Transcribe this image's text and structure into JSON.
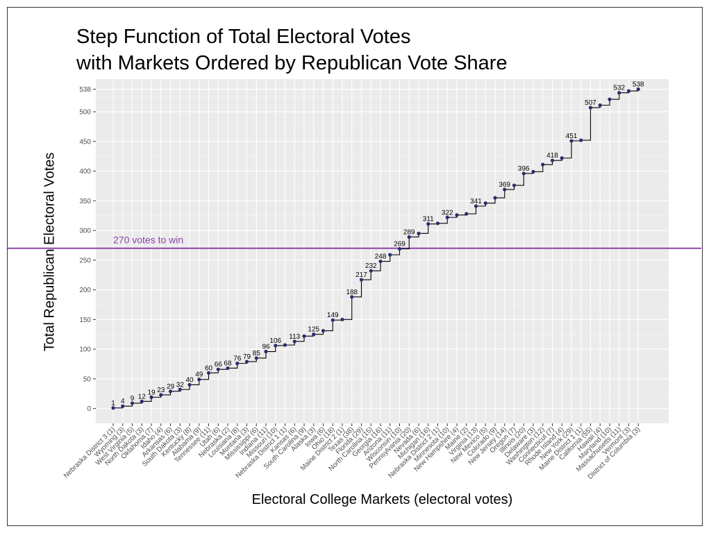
{
  "chart_data": {
    "type": "line",
    "title": [
      "Step Function of Total Electoral Votes",
      "with Markets Ordered by Republican Vote Share"
    ],
    "xlabel": "Electoral College Markets (electoral votes)",
    "ylabel": "Total Republican Electoral Votes",
    "y_ticks": [
      0,
      50,
      100,
      150,
      200,
      250,
      300,
      350,
      400,
      450,
      500,
      538
    ],
    "ylim": [
      -25,
      555
    ],
    "grid": true,
    "threshold": {
      "value": 270,
      "label": "270 votes to win",
      "color": "#8e44ad"
    },
    "line_color": "#000000",
    "point_color": "#2b2d6e",
    "categories": [
      "Nebraska District 3 (1)",
      "Wyoming (3)",
      "West Virginia (5)",
      "North Dakota (3)",
      "Oklahoma (7)",
      "Idaho (4)",
      "Arkansas (6)",
      "South Dakota (3)",
      "Kentucky (8)",
      "Alabama (9)",
      "Tennessee (11)",
      "Utah (6)",
      "Nebraska (2)",
      "Louisiana (8)",
      "Montana (3)",
      "Mississippi (6)",
      "Indiana (11)",
      "Missouri (10)",
      "Nebraska District 1 (1)",
      "Kansas (6)",
      "South Carolina (9)",
      "Alaska (3)",
      "Iowa (6)",
      "Ohio (18)",
      "Maine District 2 (1)",
      "Texas (38)",
      "Florida (29)",
      "North Carolina (15)",
      "Georgia (16)",
      "Arizona (11)",
      "Wisconsin (10)",
      "Pennsylvania (20)",
      "Nevada (6)",
      "Michigan (16)",
      "Nebraska District 2 (1)",
      "Minnesota (10)",
      "New Hampshire (4)",
      "Maine (2)",
      "Virginia (13)",
      "New Mexico (5)",
      "Colorado (9)",
      "New Jersey (14)",
      "Oregon (7)",
      "Illinois (20)",
      "Delaware (3)",
      "Washington (12)",
      "Connecticut (7)",
      "Rhode Island (4)",
      "New York (29)",
      "Maine District 1 (1)",
      "California (55)",
      "Hawaii (4)",
      "Maryland (10)",
      "Massachusetts (11)",
      "Vermont (3)",
      "District of Columbia (3)"
    ],
    "values": [
      1,
      4,
      9,
      12,
      19,
      23,
      29,
      32,
      40,
      49,
      60,
      66,
      68,
      76,
      79,
      85,
      96,
      106,
      107,
      113,
      122,
      125,
      131,
      149,
      150,
      188,
      217,
      232,
      248,
      259,
      269,
      289,
      295,
      311,
      312,
      322,
      326,
      328,
      341,
      346,
      355,
      369,
      376,
      396,
      399,
      411,
      418,
      422,
      451,
      452,
      507,
      511,
      521,
      532,
      535,
      538
    ],
    "point_labels": [
      {
        "index": 0,
        "text": "1"
      },
      {
        "index": 1,
        "text": "4"
      },
      {
        "index": 2,
        "text": "9"
      },
      {
        "index": 3,
        "text": "12"
      },
      {
        "index": 4,
        "text": "19"
      },
      {
        "index": 5,
        "text": "23"
      },
      {
        "index": 6,
        "text": "29"
      },
      {
        "index": 7,
        "text": "32"
      },
      {
        "index": 8,
        "text": "40"
      },
      {
        "index": 9,
        "text": "49"
      },
      {
        "index": 10,
        "text": "60"
      },
      {
        "index": 11,
        "text": "66"
      },
      {
        "index": 12,
        "text": "68"
      },
      {
        "index": 13,
        "text": "76"
      },
      {
        "index": 14,
        "text": "79"
      },
      {
        "index": 15,
        "text": "85"
      },
      {
        "index": 16,
        "text": "96"
      },
      {
        "index": 17,
        "text": "106"
      },
      {
        "index": 19,
        "text": "113"
      },
      {
        "index": 21,
        "text": "125"
      },
      {
        "index": 23,
        "text": "149"
      },
      {
        "index": 25,
        "text": "188"
      },
      {
        "index": 26,
        "text": "217"
      },
      {
        "index": 27,
        "text": "232"
      },
      {
        "index": 28,
        "text": "248"
      },
      {
        "index": 30,
        "text": "269"
      },
      {
        "index": 31,
        "text": "289"
      },
      {
        "index": 33,
        "text": "311"
      },
      {
        "index": 35,
        "text": "322"
      },
      {
        "index": 38,
        "text": "341"
      },
      {
        "index": 41,
        "text": "369"
      },
      {
        "index": 43,
        "text": "396"
      },
      {
        "index": 46,
        "text": "418"
      },
      {
        "index": 48,
        "text": "451"
      },
      {
        "index": 50,
        "text": "507"
      },
      {
        "index": 53,
        "text": "532"
      },
      {
        "index": 55,
        "text": "538"
      }
    ]
  }
}
